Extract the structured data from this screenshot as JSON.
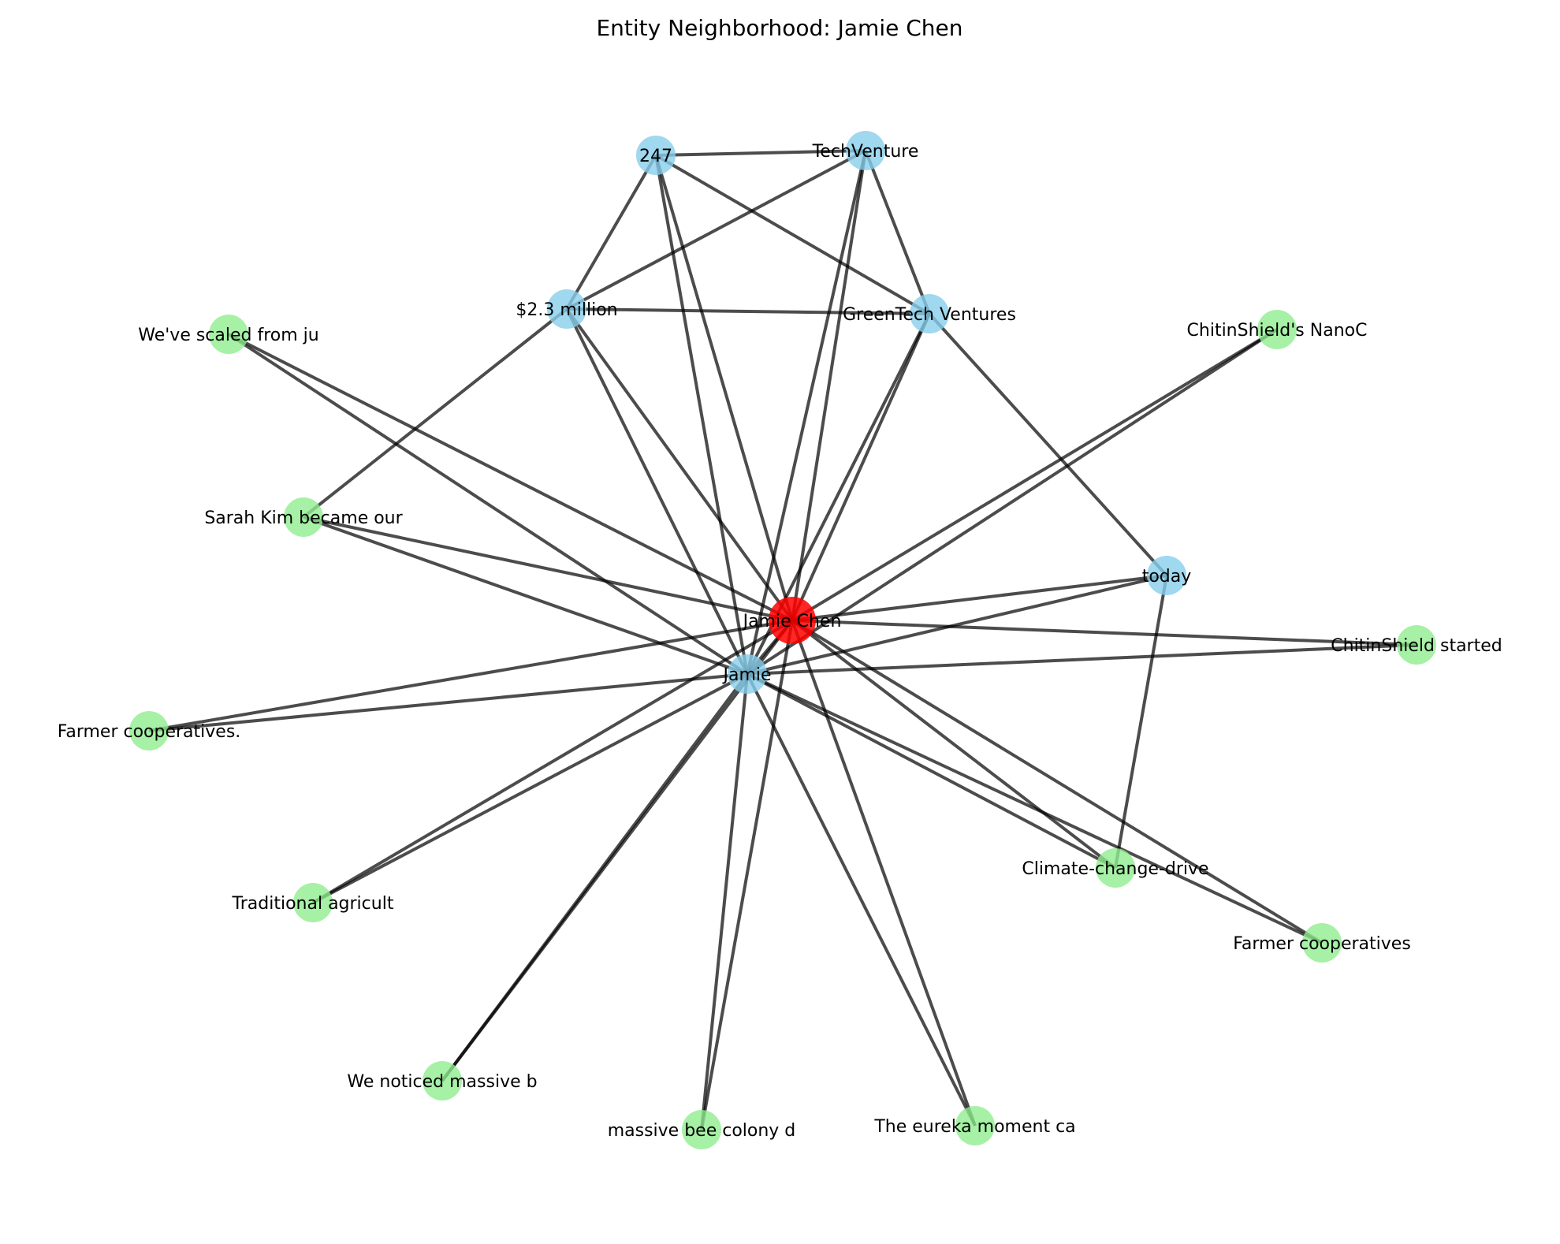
{
  "title": "Entity Neighborhood: Jamie Chen",
  "colors": {
    "focus": "#ff0000",
    "entity": "#87ceeb",
    "text_chunk": "#90ee90",
    "edge": "#000000"
  },
  "nodes": [
    {
      "id": "jamie-chen",
      "label": "Jamie Chen",
      "kind": "focus"
    },
    {
      "id": "jamie",
      "label": "Jamie",
      "kind": "entity"
    },
    {
      "id": "247",
      "label": "247",
      "kind": "entity"
    },
    {
      "id": "techventure",
      "label": "TechVenture",
      "kind": "entity"
    },
    {
      "id": "2-3-million",
      "label": "$2.3 million",
      "kind": "entity"
    },
    {
      "id": "greentech-ventures",
      "label": "GreenTech Ventures",
      "kind": "entity"
    },
    {
      "id": "today",
      "label": "today",
      "kind": "entity"
    },
    {
      "id": "we-ve-scaled",
      "label": "We've scaled from ju",
      "kind": "text_chunk"
    },
    {
      "id": "chitinshield-nanoc",
      "label": "ChitinShield's NanoC",
      "kind": "text_chunk"
    },
    {
      "id": "sarah-kim",
      "label": "Sarah Kim became our",
      "kind": "text_chunk"
    },
    {
      "id": "chitinshield-started",
      "label": "ChitinShield started",
      "kind": "text_chunk"
    },
    {
      "id": "farmer-cooperatives-dot",
      "label": "Farmer cooperatives.",
      "kind": "text_chunk"
    },
    {
      "id": "climate-change",
      "label": "Climate-change-drive",
      "kind": "text_chunk"
    },
    {
      "id": "traditional-agricult",
      "label": "Traditional agricult",
      "kind": "text_chunk"
    },
    {
      "id": "farmer-cooperatives",
      "label": "Farmer cooperatives",
      "kind": "text_chunk"
    },
    {
      "id": "we-noticed",
      "label": "We noticed massive b",
      "kind": "text_chunk"
    },
    {
      "id": "massive-bee",
      "label": "massive bee colony d",
      "kind": "text_chunk"
    },
    {
      "id": "eureka",
      "label": "The eureka moment ca",
      "kind": "text_chunk"
    }
  ],
  "edges": [
    [
      "247",
      "techventure"
    ],
    [
      "247",
      "2-3-million"
    ],
    [
      "247",
      "greentech-ventures"
    ],
    [
      "247",
      "jamie-chen"
    ],
    [
      "247",
      "jamie"
    ],
    [
      "techventure",
      "2-3-million"
    ],
    [
      "techventure",
      "greentech-ventures"
    ],
    [
      "techventure",
      "jamie-chen"
    ],
    [
      "techventure",
      "jamie"
    ],
    [
      "2-3-million",
      "greentech-ventures"
    ],
    [
      "2-3-million",
      "sarah-kim"
    ],
    [
      "2-3-million",
      "jamie-chen"
    ],
    [
      "2-3-million",
      "jamie"
    ],
    [
      "greentech-ventures",
      "today"
    ],
    [
      "greentech-ventures",
      "jamie-chen"
    ],
    [
      "greentech-ventures",
      "jamie"
    ],
    [
      "today",
      "jamie-chen"
    ],
    [
      "today",
      "jamie"
    ],
    [
      "today",
      "climate-change"
    ],
    [
      "we-ve-scaled",
      "jamie-chen"
    ],
    [
      "we-ve-scaled",
      "jamie"
    ],
    [
      "chitinshield-nanoc",
      "jamie-chen"
    ],
    [
      "chitinshield-nanoc",
      "jamie"
    ],
    [
      "sarah-kim",
      "jamie-chen"
    ],
    [
      "sarah-kim",
      "jamie"
    ],
    [
      "chitinshield-started",
      "jamie-chen"
    ],
    [
      "chitinshield-started",
      "jamie"
    ],
    [
      "farmer-cooperatives-dot",
      "jamie-chen"
    ],
    [
      "farmer-cooperatives-dot",
      "jamie"
    ],
    [
      "climate-change",
      "jamie-chen"
    ],
    [
      "climate-change",
      "jamie"
    ],
    [
      "traditional-agricult",
      "jamie-chen"
    ],
    [
      "traditional-agricult",
      "jamie"
    ],
    [
      "farmer-cooperatives",
      "jamie-chen"
    ],
    [
      "farmer-cooperatives",
      "jamie"
    ],
    [
      "we-noticed",
      "jamie-chen"
    ],
    [
      "we-noticed",
      "jamie"
    ],
    [
      "massive-bee",
      "jamie-chen"
    ],
    [
      "massive-bee",
      "jamie"
    ],
    [
      "eureka",
      "jamie-chen"
    ],
    [
      "eureka",
      "jamie"
    ],
    [
      "jamie-chen",
      "jamie"
    ]
  ]
}
